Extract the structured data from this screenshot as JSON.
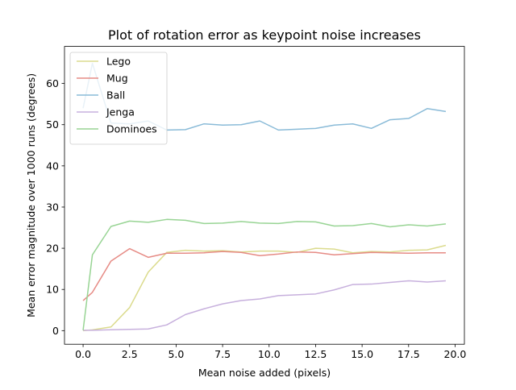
{
  "chart_data": {
    "type": "line",
    "title": "Plot of rotation error as keypoint noise increases",
    "xlabel": "Mean noise added (pixels)",
    "ylabel": "Mean error magnitude over 1000 runs (degrees)",
    "xlim": [
      -1.0,
      20.5
    ],
    "ylim": [
      -3.3,
      69.0
    ],
    "xticks": [
      "0.0",
      "2.5",
      "5.0",
      "7.5",
      "10.0",
      "12.5",
      "15.0",
      "17.5",
      "20.0"
    ],
    "yticks": [
      "0",
      "10",
      "20",
      "30",
      "40",
      "50",
      "60"
    ],
    "legend_position": "top-left",
    "grid": false,
    "x": [
      0,
      0.5,
      1.5,
      2.5,
      3.5,
      4.5,
      5.5,
      6.5,
      7.5,
      8.5,
      9.5,
      10.5,
      11.5,
      12.5,
      13.5,
      14.5,
      15.5,
      16.5,
      17.5,
      18.5,
      19.5
    ],
    "series": [
      {
        "name": "Lego",
        "color": "#dbdb8d",
        "values": [
          0.0,
          0.2,
          0.9,
          5.6,
          14.2,
          19.0,
          19.5,
          19.3,
          19.4,
          19.1,
          19.3,
          19.3,
          19.0,
          20.0,
          19.8,
          18.9,
          19.2,
          19.1,
          19.5,
          19.6,
          20.7
        ]
      },
      {
        "name": "Mug",
        "color": "#e68b85",
        "values": [
          7.3,
          9.3,
          16.9,
          19.9,
          17.8,
          18.8,
          18.8,
          18.9,
          19.2,
          19.0,
          18.2,
          18.6,
          19.1,
          19.0,
          18.4,
          18.7,
          19.0,
          18.9,
          18.8,
          18.9,
          18.9
        ]
      },
      {
        "name": "Ball",
        "color": "#8abbd8",
        "values": [
          54.0,
          64.9,
          50.4,
          50.2,
          50.9,
          48.7,
          48.8,
          50.2,
          49.9,
          50.0,
          50.9,
          48.7,
          48.9,
          49.1,
          49.9,
          50.2,
          49.1,
          51.2,
          51.5,
          53.9,
          53.2
        ]
      },
      {
        "name": "Jenga",
        "color": "#c7b0dd",
        "values": [
          0.1,
          0.1,
          0.2,
          0.3,
          0.4,
          1.4,
          3.9,
          5.3,
          6.5,
          7.3,
          7.7,
          8.5,
          8.7,
          8.9,
          9.9,
          11.2,
          11.3,
          11.7,
          12.1,
          11.8,
          12.1
        ]
      },
      {
        "name": "Dominoes",
        "color": "#98d494",
        "values": [
          0.1,
          18.4,
          25.3,
          26.6,
          26.3,
          27.0,
          26.8,
          26.0,
          26.1,
          26.5,
          26.1,
          26.0,
          26.5,
          26.4,
          25.4,
          25.5,
          26.0,
          25.2,
          25.7,
          25.4,
          25.9
        ]
      }
    ]
  }
}
